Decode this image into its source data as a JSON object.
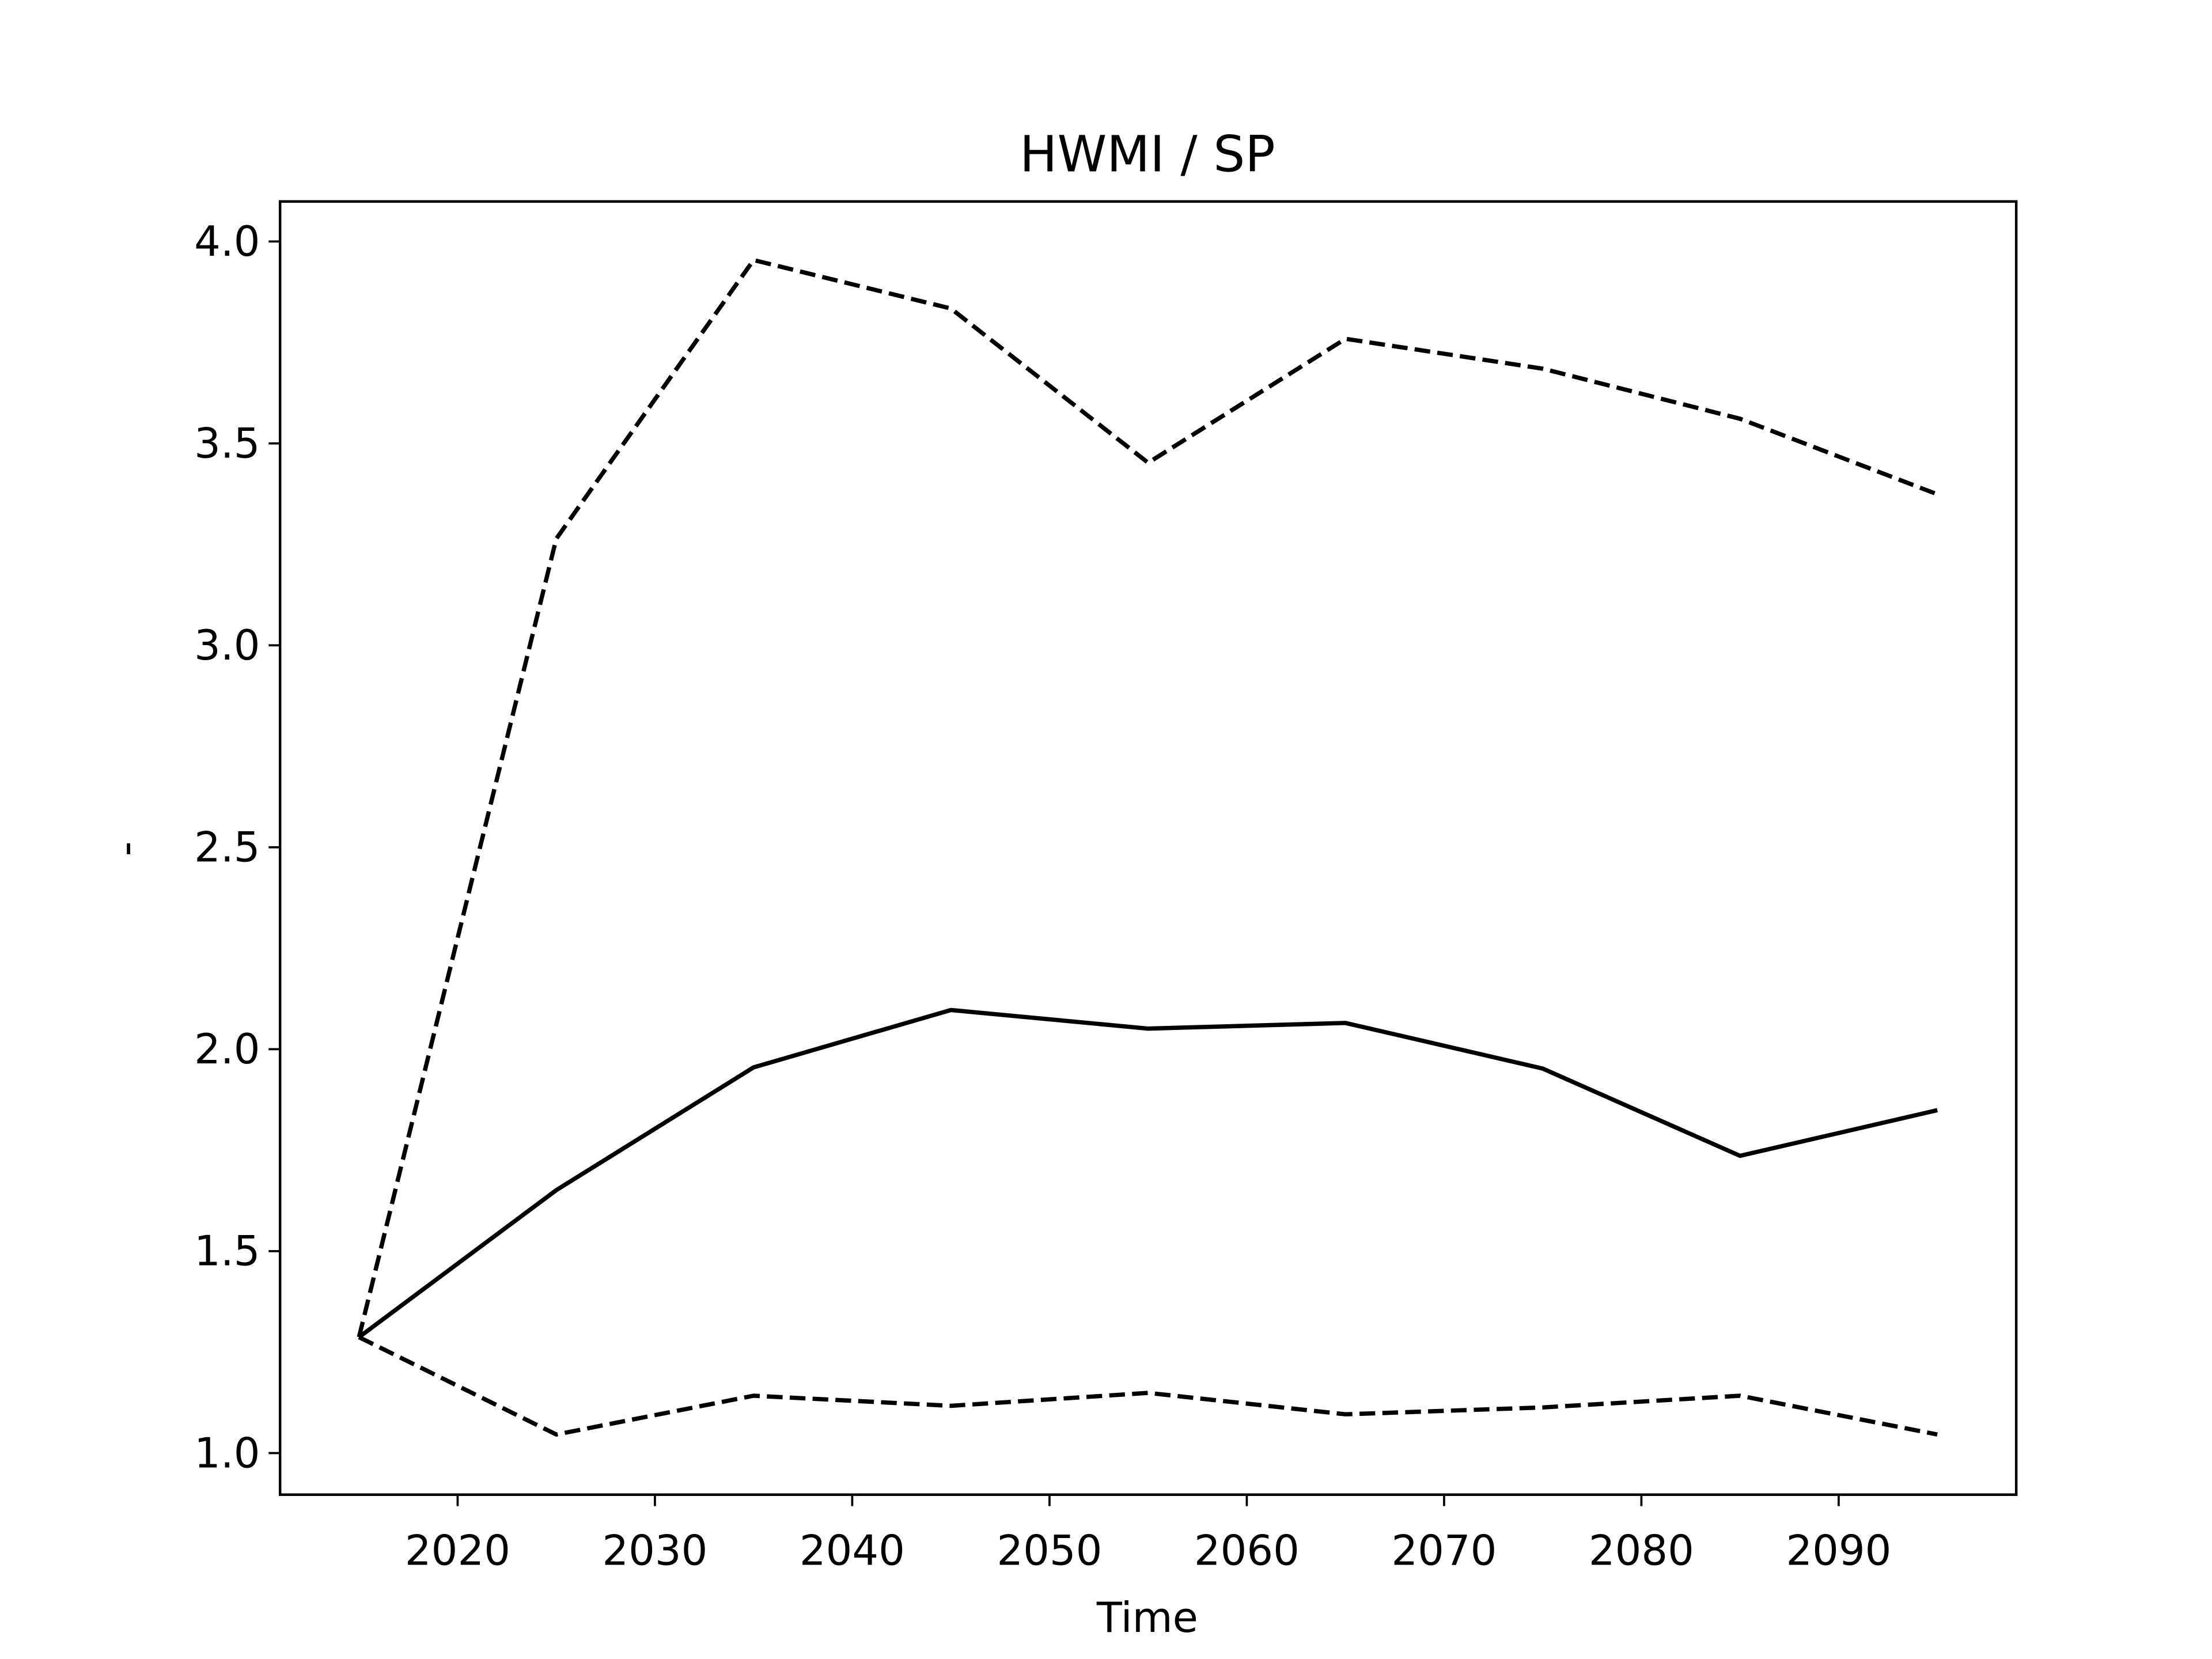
{
  "chart_data": {
    "type": "line",
    "title": "HWMI / SP",
    "xlabel": "Time",
    "ylabel": "-",
    "x": [
      2015,
      2025,
      2035,
      2045,
      2055,
      2065,
      2075,
      2085,
      2095
    ],
    "series": [
      {
        "color": "#000000",
        "linestyle": "solid",
        "values": [
          1.287,
          1.651,
          1.955,
          2.097,
          2.051,
          2.065,
          1.952,
          1.736,
          1.849
        ]
      },
      {
        "color": "#000000",
        "linestyle": "dashed",
        "values": [
          1.287,
          3.264,
          3.954,
          3.834,
          3.452,
          3.759,
          3.685,
          3.561,
          3.374
        ]
      },
      {
        "color": "#000000",
        "linestyle": "dashed",
        "values": [
          1.287,
          1.046,
          1.142,
          1.117,
          1.149,
          1.096,
          1.113,
          1.142,
          1.046
        ]
      }
    ],
    "xlim": [
      2011,
      2099
    ],
    "xticks": [
      2020,
      2030,
      2040,
      2050,
      2060,
      2070,
      2080,
      2090
    ],
    "ylim": [
      0.897,
      4.099
    ],
    "yticks": [
      {
        "value": 1,
        "label": "1.0"
      },
      {
        "value": 1.5,
        "label": "1.5"
      },
      {
        "value": 2,
        "label": "2.0"
      },
      {
        "value": 2.5,
        "label": "2.5"
      },
      {
        "value": 3,
        "label": "3.0"
      },
      {
        "value": 3.5,
        "label": "3.5"
      },
      {
        "value": 4,
        "label": "4.0"
      }
    ],
    "grid": false
  }
}
